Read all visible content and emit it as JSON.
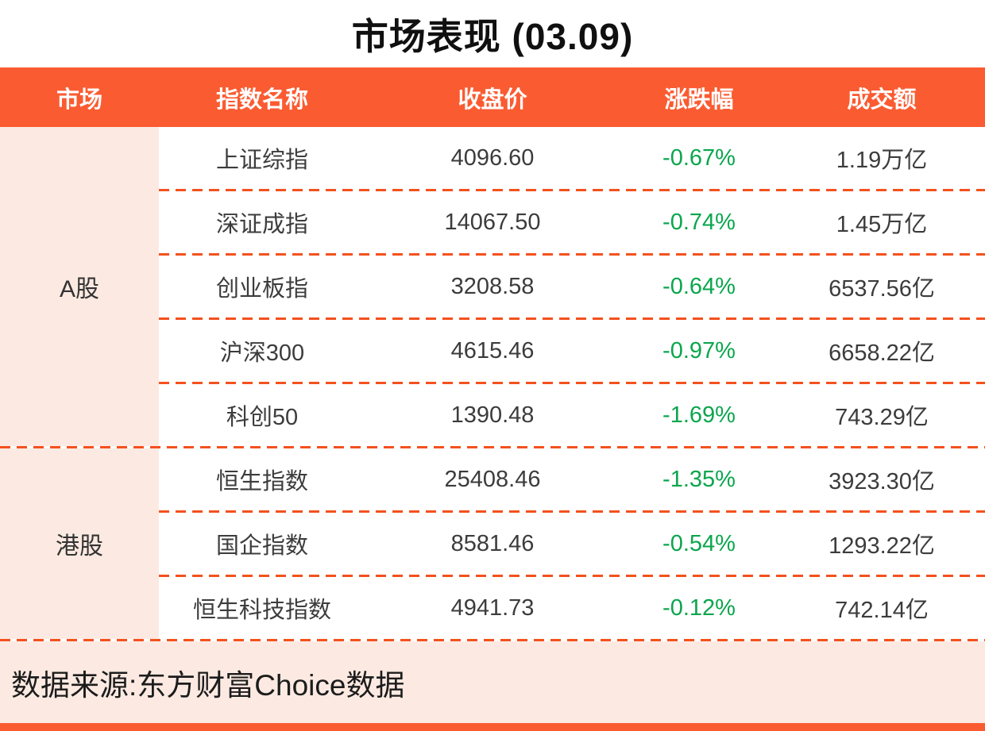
{
  "title": "市场表现 (03.09)",
  "columns": [
    "市场",
    "指数名称",
    "收盘价",
    "涨跌幅",
    "成交额"
  ],
  "sections": [
    {
      "market": "A股",
      "rows": [
        {
          "name": "上证综指",
          "close": "4096.60",
          "change": "-0.67%",
          "volume": "1.19万亿"
        },
        {
          "name": "深证成指",
          "close": "14067.50",
          "change": "-0.74%",
          "volume": "1.45万亿"
        },
        {
          "name": "创业板指",
          "close": "3208.58",
          "change": "-0.64%",
          "volume": "6537.56亿"
        },
        {
          "name": "沪深300",
          "close": "4615.46",
          "change": "-0.97%",
          "volume": "6658.22亿"
        },
        {
          "name": "科创50",
          "close": "1390.48",
          "change": "-1.69%",
          "volume": "743.29亿"
        }
      ]
    },
    {
      "market": "港股",
      "rows": [
        {
          "name": "恒生指数",
          "close": "25408.46",
          "change": "-1.35%",
          "volume": "3923.30亿"
        },
        {
          "name": "国企指数",
          "close": "8581.46",
          "change": "-0.54%",
          "volume": "1293.22亿"
        },
        {
          "name": "恒生科技指数",
          "close": "4941.73",
          "change": "-0.12%",
          "volume": "742.14亿"
        }
      ]
    }
  ],
  "footer": {
    "source": "数据来源:东方财富Choice数据"
  },
  "colors": {
    "accent": "#FB5B31",
    "dash": "#F4511E",
    "row_bg": "#FCEAE2",
    "negative_green": "#0AA64D",
    "header_text": "#FFFFFF",
    "body_text": "#3C3C3C"
  },
  "chart_data": {
    "type": "table",
    "title": "市场表现 (03.09)",
    "columns": [
      "市场",
      "指数名称",
      "收盘价",
      "涨跌幅",
      "成交额"
    ],
    "rows": [
      [
        "A股",
        "上证综指",
        4096.6,
        -0.67,
        "1.19万亿"
      ],
      [
        "A股",
        "深证成指",
        14067.5,
        -0.74,
        "1.45万亿"
      ],
      [
        "A股",
        "创业板指",
        3208.58,
        -0.64,
        "6537.56亿"
      ],
      [
        "A股",
        "沪深300",
        4615.46,
        -0.97,
        "6658.22亿"
      ],
      [
        "A股",
        "科创50",
        1390.48,
        -1.69,
        "743.29亿"
      ],
      [
        "港股",
        "恒生指数",
        25408.46,
        -1.35,
        "3923.30亿"
      ],
      [
        "港股",
        "国企指数",
        8581.46,
        -0.54,
        "1293.22亿"
      ],
      [
        "港股",
        "恒生科技指数",
        4941.73,
        -0.12,
        "742.14亿"
      ]
    ],
    "notes": "涨跌幅 values rendered in green (negative); source footer: 数据来源:东方财富Choice数据"
  }
}
